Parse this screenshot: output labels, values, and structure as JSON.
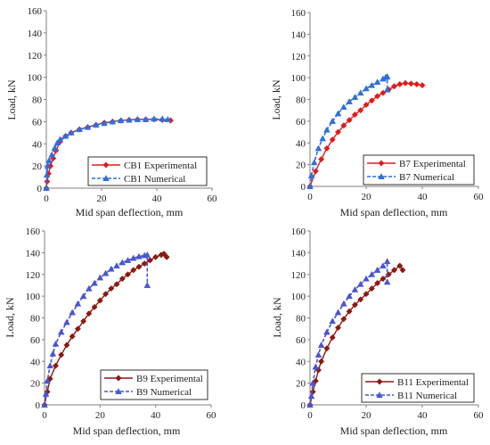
{
  "colors": {
    "experimental_red": "#e31a1c",
    "numerical_blue": "#2e6fd9",
    "experimental_brown": "#8b1a12",
    "numerical_purple": "#4a55cf",
    "axis": "#7f7f7f",
    "text": "#222222"
  },
  "chart_data": [
    {
      "id": "cb1",
      "type": "line",
      "xlabel": "Mid span deflection, mm",
      "ylabel": "Load, kN",
      "xlim": [
        0,
        60
      ],
      "ylim": [
        0,
        160
      ],
      "xticks": [
        0,
        20,
        40,
        60
      ],
      "yticks": [
        0,
        20,
        40,
        60,
        80,
        100,
        120,
        140,
        160
      ],
      "grid": false,
      "legend": "bottom-right",
      "series": [
        {
          "name": "CB1 Experimental",
          "color": "#e31a1c",
          "marker": "diamond",
          "dash": false,
          "x": [
            0,
            0.3,
            0.8,
            1.5,
            2.5,
            3.5,
            5,
            7,
            9,
            12,
            15,
            18,
            21,
            24,
            27,
            30,
            33,
            36,
            39,
            42,
            45
          ],
          "y": [
            0,
            6,
            13,
            20,
            27,
            34,
            42,
            47,
            50,
            53,
            55,
            57,
            59,
            60,
            61,
            61.5,
            62,
            62,
            62,
            61.5,
            61
          ]
        },
        {
          "name": "CB1 Numerical",
          "color": "#2e6fd9",
          "marker": "triangle",
          "dash": true,
          "x": [
            0,
            0.2,
            0.5,
            1,
            2,
            3,
            4,
            5,
            7,
            9,
            12,
            15,
            18,
            21,
            24,
            27,
            30,
            33,
            36,
            39,
            42,
            44
          ],
          "y": [
            0,
            12,
            20,
            25,
            30,
            36,
            41,
            44,
            47,
            50,
            53,
            55,
            57,
            58.5,
            60,
            61,
            61.5,
            62,
            62,
            62.5,
            62.5,
            62
          ]
        }
      ]
    },
    {
      "id": "b7",
      "type": "line",
      "xlabel": "Mid span deflection, mm",
      "ylabel": "Load, kN",
      "xlim": [
        0,
        60
      ],
      "ylim": [
        0,
        160
      ],
      "xticks": [
        0,
        20,
        40,
        60
      ],
      "yticks": [
        0,
        20,
        40,
        60,
        80,
        100,
        120,
        140,
        160
      ],
      "grid": false,
      "legend": "bottom-right",
      "series": [
        {
          "name": "B7 Experimental",
          "color": "#e31a1c",
          "marker": "diamond",
          "dash": false,
          "x": [
            0,
            2,
            4,
            6,
            8,
            10,
            12,
            14,
            16,
            18,
            20,
            22,
            24,
            26,
            28,
            30,
            32,
            34,
            36,
            38,
            40
          ],
          "y": [
            0,
            14,
            25,
            35,
            43,
            50,
            56,
            61,
            66,
            70,
            75,
            79,
            83,
            86,
            89,
            92,
            94,
            95,
            94.5,
            94,
            93
          ]
        },
        {
          "name": "B7 Numerical",
          "color": "#2e6fd9",
          "marker": "triangle",
          "dash": true,
          "x": [
            0,
            0.5,
            1.5,
            3,
            4.5,
            6,
            8,
            10,
            12,
            14,
            16,
            18,
            20,
            22,
            24,
            26,
            27,
            27.5,
            27.5
          ],
          "y": [
            0,
            10,
            22,
            35,
            44,
            52,
            60,
            67,
            73,
            78,
            82,
            86,
            90,
            93,
            96,
            99,
            100.5,
            101,
            89
          ]
        }
      ]
    },
    {
      "id": "b9",
      "type": "line",
      "xlabel": "Mid span deflection, mm",
      "ylabel": "Load, kN",
      "xlim": [
        0,
        60
      ],
      "ylim": [
        0,
        160
      ],
      "xticks": [
        0,
        20,
        40,
        60
      ],
      "yticks": [
        0,
        20,
        40,
        60,
        80,
        100,
        120,
        140,
        160
      ],
      "grid": false,
      "legend": "bottom-right",
      "series": [
        {
          "name": "B9 Experimental",
          "color": "#8b1a12",
          "marker": "diamond",
          "dash": false,
          "x": [
            0,
            1,
            2,
            4,
            6,
            8,
            10,
            12,
            14,
            16,
            18,
            20,
            22,
            24,
            26,
            28,
            30,
            32,
            34,
            36,
            38,
            40,
            42,
            43,
            44
          ],
          "y": [
            0,
            12,
            24,
            36,
            46,
            55,
            63,
            70,
            77,
            84,
            90,
            96,
            102,
            107,
            111,
            116,
            120,
            124,
            127,
            130,
            133,
            136,
            138,
            139,
            136
          ]
        },
        {
          "name": "B9 Numerical",
          "color": "#4a55cf",
          "marker": "triangle",
          "dash": true,
          "x": [
            0,
            0.5,
            1,
            2,
            3,
            4,
            6,
            8,
            10,
            12,
            14,
            16,
            18,
            20,
            22,
            24,
            26,
            28,
            30,
            32,
            34,
            36,
            37,
            37
          ],
          "y": [
            0,
            10,
            22,
            36,
            47,
            56,
            67,
            76,
            85,
            93,
            100,
            107,
            112,
            117,
            121,
            125,
            128,
            131,
            133,
            135,
            136.5,
            137.5,
            138,
            110
          ]
        }
      ]
    },
    {
      "id": "b11",
      "type": "line",
      "xlabel": "Mid span deflection, mm",
      "ylabel": "Load, kN",
      "xlim": [
        0,
        60
      ],
      "ylim": [
        0,
        160
      ],
      "xticks": [
        0,
        20,
        40,
        60
      ],
      "yticks": [
        0,
        20,
        40,
        60,
        80,
        100,
        120,
        140,
        160
      ],
      "grid": false,
      "legend": "bottom-right",
      "series": [
        {
          "name": "B11 Experimental",
          "color": "#8b1a12",
          "marker": "diamond",
          "dash": false,
          "x": [
            0,
            1,
            2,
            3,
            4,
            6,
            8,
            10,
            12,
            14,
            16,
            18,
            20,
            22,
            24,
            26,
            28,
            30,
            32,
            33
          ],
          "y": [
            0,
            12,
            22,
            32,
            40,
            52,
            62,
            71,
            79,
            86,
            92,
            97,
            102,
            107,
            112,
            116,
            120,
            124,
            128,
            124
          ]
        },
        {
          "name": "B11 Numerical",
          "color": "#4a55cf",
          "marker": "triangle",
          "dash": true,
          "x": [
            0,
            0.5,
            1,
            2,
            3,
            4,
            6,
            8,
            10,
            12,
            14,
            16,
            18,
            20,
            22,
            24,
            26,
            27.5,
            27.5
          ],
          "y": [
            0,
            8,
            20,
            35,
            46,
            55,
            67,
            77,
            85,
            93,
            100,
            106,
            111,
            116,
            120,
            124,
            128,
            132,
            113
          ]
        }
      ]
    }
  ]
}
